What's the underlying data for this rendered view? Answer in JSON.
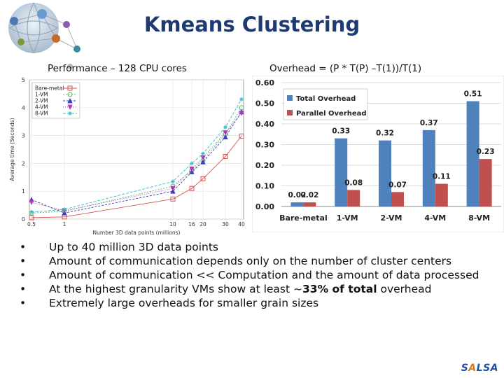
{
  "slide": {
    "title": "Kmeans Clustering",
    "left_subtitle": "Performance – 128 CPU cores",
    "right_subtitle": "Overhead = (P * T(P) –T(1))/T(1)",
    "bullets": [
      {
        "pre": "Up to 40 million 3D data points",
        "bold": "",
        "post": ""
      },
      {
        "pre": "Amount of communication depends only on the number of cluster centers",
        "bold": "",
        "post": ""
      },
      {
        "pre": "Amount of communication << Computation and the amount of data processed",
        "bold": "",
        "post": ""
      },
      {
        "pre": "At the highest granularity VMs show at least ~",
        "bold": "33% of total",
        "post": " overhead"
      },
      {
        "pre": "Extremely large overheads for smaller grain sizes",
        "bold": "",
        "post": ""
      }
    ],
    "brand": [
      "S",
      "A",
      "L",
      "S",
      "A"
    ],
    "brand_colors": [
      "#1f4fa3",
      "#d97a1a",
      "#1f4fa3",
      "#1f4fa3",
      "#1f4fa3"
    ]
  },
  "chart_data": [
    {
      "type": "line",
      "xlabel": "Number 3D data points (millions)",
      "ylabel": "Average time (Seconds)",
      "xlim": [
        0.5,
        40
      ],
      "ylim": [
        0,
        5
      ],
      "xticks": [
        0.5,
        1,
        10,
        16,
        20,
        30,
        40
      ],
      "yticks": [
        0,
        1,
        2,
        3,
        4,
        5
      ],
      "legend_position": "top-left",
      "grid": true,
      "x": [
        0.5,
        1,
        10,
        16,
        20,
        30,
        40
      ],
      "series": [
        {
          "name": "Bare-metal",
          "color": "#d9534f",
          "marker": "square",
          "values": [
            0.05,
            0.08,
            0.72,
            1.1,
            1.45,
            2.25,
            2.98
          ]
        },
        {
          "name": "1-VM",
          "color": "#5cb85c",
          "marker": "circle",
          "values": [
            0.22,
            0.28,
            1.18,
            1.75,
            2.1,
            3.05,
            4.0
          ]
        },
        {
          "name": "2-VM",
          "color": "#3a3ac4",
          "marker": "triangle",
          "values": [
            0.7,
            0.22,
            1.0,
            1.7,
            2.05,
            2.95,
            3.85
          ]
        },
        {
          "name": "4-VM",
          "color": "#b03ab0",
          "marker": "triangle-down",
          "values": [
            0.6,
            0.3,
            1.1,
            1.8,
            2.2,
            3.1,
            3.8
          ]
        },
        {
          "name": "8-VM",
          "color": "#33bbcc",
          "marker": "star",
          "values": [
            0.25,
            0.35,
            1.35,
            2.0,
            2.35,
            3.3,
            4.3
          ]
        }
      ]
    },
    {
      "type": "bar",
      "categories": [
        "Bare-metal",
        "1-VM",
        "2-VM",
        "4-VM",
        "8-VM"
      ],
      "ylim": [
        0,
        0.6
      ],
      "yticks": [
        "0.00",
        "0.10",
        "0.20",
        "0.30",
        "0.40",
        "0.50",
        "0.60"
      ],
      "legend_position": "top-left",
      "series": [
        {
          "name": "Total Overhead",
          "color": "#4f81bd",
          "values": [
            0.02,
            0.33,
            0.32,
            0.37,
            0.51
          ],
          "labels": [
            "0.02",
            "0.33",
            "0.32",
            "0.37",
            "0.51"
          ]
        },
        {
          "name": "Parallel Overhead",
          "color": "#c0504d",
          "values": [
            0.02,
            0.08,
            0.07,
            0.11,
            0.23
          ],
          "labels": [
            "0.02",
            "0.08",
            "0.07",
            "0.11",
            "0.23"
          ]
        }
      ]
    }
  ]
}
